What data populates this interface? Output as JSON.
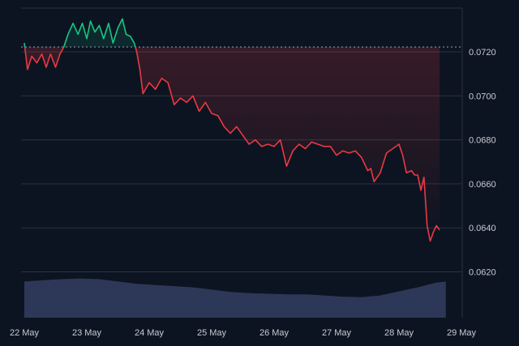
{
  "chart_data": {
    "type": "area",
    "x_dates": [
      "22 May",
      "23 May",
      "24 May",
      "25 May",
      "26 May",
      "27 May",
      "28 May",
      "29 May"
    ],
    "y_ticks": [
      "0.0720",
      "0.0700",
      "0.0680",
      "0.0660",
      "0.0640",
      "0.0620"
    ],
    "ylim": [
      0.0611,
      0.074
    ],
    "baseline": 0.07222,
    "grid": true,
    "colors": {
      "background": "#0d1421",
      "grid": "#2a3140",
      "up": "#16c784",
      "down": "#ea3943",
      "volume": "#2f3a5c",
      "baseline_line": "#9aa0ab"
    },
    "series": [
      {
        "values": [
          [
            0.0,
            0.0724
          ],
          [
            0.05,
            0.0712
          ],
          [
            0.12,
            0.0718
          ],
          [
            0.2,
            0.0715
          ],
          [
            0.28,
            0.0719
          ],
          [
            0.35,
            0.0713
          ],
          [
            0.42,
            0.0719
          ],
          [
            0.5,
            0.0713
          ],
          [
            0.57,
            0.0719
          ],
          [
            0.63,
            0.0722
          ],
          [
            0.7,
            0.0728
          ],
          [
            0.78,
            0.0733
          ],
          [
            0.86,
            0.0728
          ],
          [
            0.93,
            0.0733
          ],
          [
            1.0,
            0.0726
          ],
          [
            1.06,
            0.0734
          ],
          [
            1.13,
            0.0729
          ],
          [
            1.2,
            0.0732
          ],
          [
            1.27,
            0.0726
          ],
          [
            1.35,
            0.0733
          ],
          [
            1.42,
            0.0724
          ],
          [
            1.5,
            0.0731
          ],
          [
            1.57,
            0.0735
          ],
          [
            1.63,
            0.0728
          ],
          [
            1.7,
            0.0727
          ],
          [
            1.76,
            0.0724
          ],
          [
            1.8,
            0.072
          ],
          [
            1.85,
            0.0712
          ],
          [
            1.9,
            0.0701
          ],
          [
            2.0,
            0.0706
          ],
          [
            2.1,
            0.0703
          ],
          [
            2.2,
            0.0708
          ],
          [
            2.3,
            0.0706
          ],
          [
            2.4,
            0.0696
          ],
          [
            2.5,
            0.0699
          ],
          [
            2.6,
            0.0697
          ],
          [
            2.7,
            0.07
          ],
          [
            2.8,
            0.0693
          ],
          [
            2.9,
            0.0697
          ],
          [
            3.0,
            0.0692
          ],
          [
            3.1,
            0.0691
          ],
          [
            3.2,
            0.0686
          ],
          [
            3.3,
            0.0683
          ],
          [
            3.4,
            0.0686
          ],
          [
            3.5,
            0.0682
          ],
          [
            3.6,
            0.0678
          ],
          [
            3.7,
            0.068
          ],
          [
            3.8,
            0.0677
          ],
          [
            3.9,
            0.0678
          ],
          [
            4.0,
            0.0677
          ],
          [
            4.1,
            0.068
          ],
          [
            4.2,
            0.0668
          ],
          [
            4.3,
            0.0675
          ],
          [
            4.4,
            0.0678
          ],
          [
            4.5,
            0.0676
          ],
          [
            4.6,
            0.0679
          ],
          [
            4.7,
            0.0678
          ],
          [
            4.8,
            0.0677
          ],
          [
            4.9,
            0.0677
          ],
          [
            5.0,
            0.0673
          ],
          [
            5.1,
            0.0675
          ],
          [
            5.2,
            0.0674
          ],
          [
            5.3,
            0.0675
          ],
          [
            5.4,
            0.0672
          ],
          [
            5.5,
            0.0666
          ],
          [
            5.55,
            0.0667
          ],
          [
            5.6,
            0.0661
          ],
          [
            5.7,
            0.0665
          ],
          [
            5.8,
            0.0674
          ],
          [
            5.9,
            0.0676
          ],
          [
            6.0,
            0.0678
          ],
          [
            6.06,
            0.0673
          ],
          [
            6.12,
            0.0665
          ],
          [
            6.2,
            0.0666
          ],
          [
            6.25,
            0.0664
          ],
          [
            6.3,
            0.0664
          ],
          [
            6.35,
            0.0657
          ],
          [
            6.4,
            0.0663
          ],
          [
            6.45,
            0.0641
          ],
          [
            6.5,
            0.0634
          ],
          [
            6.55,
            0.0638
          ],
          [
            6.6,
            0.0641
          ],
          [
            6.65,
            0.0639
          ]
        ]
      },
      {
        "name": "volume",
        "values": [
          [
            0.0,
            0.62
          ],
          [
            0.3,
            0.64
          ],
          [
            0.6,
            0.66
          ],
          [
            0.9,
            0.67
          ],
          [
            1.2,
            0.66
          ],
          [
            1.5,
            0.62
          ],
          [
            1.8,
            0.58
          ],
          [
            2.1,
            0.56
          ],
          [
            2.4,
            0.54
          ],
          [
            2.7,
            0.52
          ],
          [
            3.0,
            0.48
          ],
          [
            3.3,
            0.44
          ],
          [
            3.6,
            0.42
          ],
          [
            3.9,
            0.41
          ],
          [
            4.2,
            0.4
          ],
          [
            4.5,
            0.4
          ],
          [
            4.8,
            0.38
          ],
          [
            5.1,
            0.36
          ],
          [
            5.4,
            0.35
          ],
          [
            5.7,
            0.38
          ],
          [
            6.0,
            0.45
          ],
          [
            6.3,
            0.52
          ],
          [
            6.6,
            0.6
          ],
          [
            6.75,
            0.62
          ]
        ]
      }
    ]
  }
}
